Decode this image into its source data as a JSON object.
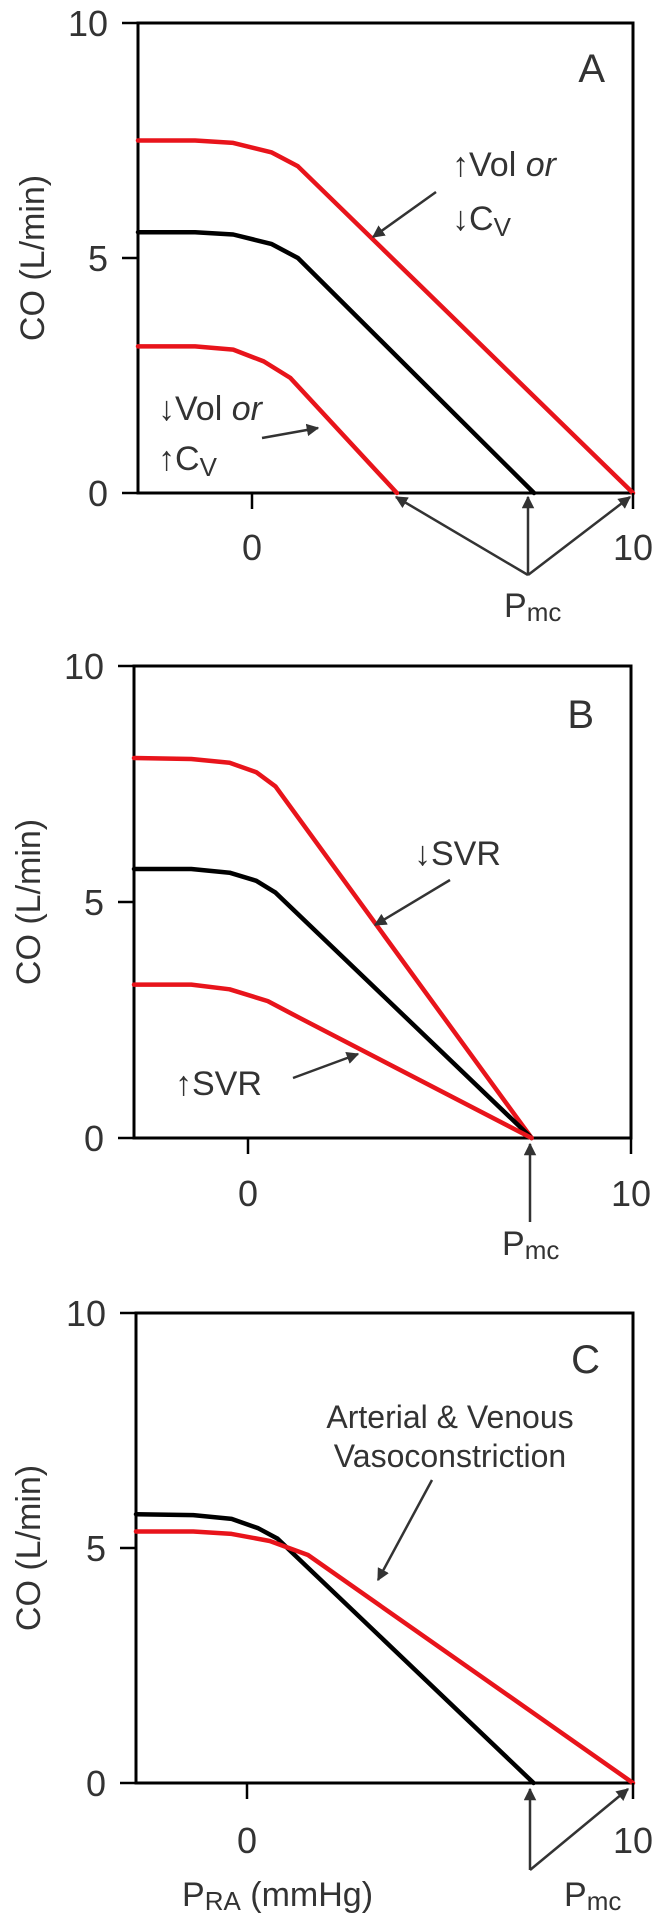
{
  "chart_data": [
    {
      "type": "line",
      "panel_label": "A",
      "ylabel": "CO  (L/min)",
      "xlabel": "",
      "xlim": [
        -3,
        10
      ],
      "ylim": [
        0,
        10
      ],
      "xticks": [
        0,
        10
      ],
      "yticks": [
        0,
        5,
        10
      ],
      "x_tick_labels": [
        "0",
        "10"
      ],
      "y_tick_labels": [
        "0",
        "5",
        "10"
      ],
      "series": [
        {
          "color": "#e8141b",
          "points": [
            [
              -3,
              7.5
            ],
            [
              -1.5,
              7.5
            ],
            [
              -0.5,
              7.45
            ],
            [
              0.5,
              7.25
            ],
            [
              1.2,
              6.95
            ],
            [
              10,
              0
            ]
          ]
        },
        {
          "color": "#000000",
          "points": [
            [
              -3,
              5.55
            ],
            [
              -1.5,
              5.55
            ],
            [
              -0.5,
              5.5
            ],
            [
              0.5,
              5.3
            ],
            [
              1.2,
              5.0
            ],
            [
              7.4,
              0
            ]
          ]
        },
        {
          "color": "#e8141b",
          "points": [
            [
              -3,
              3.12
            ],
            [
              -1.5,
              3.12
            ],
            [
              -0.5,
              3.05
            ],
            [
              0.3,
              2.8
            ],
            [
              1.0,
              2.45
            ],
            [
              3.8,
              0
            ]
          ]
        }
      ],
      "annotations": [
        {
          "parts": [
            "↑Vol ",
            "or"
          ],
          "line2": "↓C",
          "sub": "V"
        },
        {
          "parts": [
            "↓Vol ",
            "or"
          ],
          "line2": "↑C",
          "sub": "V"
        }
      ],
      "pmc_label": {
        "main": "P",
        "sub": "mc"
      }
    },
    {
      "type": "line",
      "panel_label": "B",
      "ylabel": "CO  (L/min)",
      "xlabel": "",
      "xlim": [
        -3,
        10
      ],
      "ylim": [
        0,
        10
      ],
      "xticks": [
        0,
        10
      ],
      "yticks": [
        0,
        5,
        10
      ],
      "x_tick_labels": [
        "0",
        "10"
      ],
      "y_tick_labels": [
        "0",
        "5",
        "10"
      ],
      "series": [
        {
          "color": "#e8141b",
          "points": [
            [
              -3,
              8.05
            ],
            [
              -1.5,
              8.03
            ],
            [
              -0.5,
              7.95
            ],
            [
              0.2,
              7.75
            ],
            [
              0.7,
              7.45
            ],
            [
              7.4,
              0
            ]
          ]
        },
        {
          "color": "#000000",
          "points": [
            [
              -3,
              5.7
            ],
            [
              -1.5,
              5.7
            ],
            [
              -0.5,
              5.62
            ],
            [
              0.2,
              5.45
            ],
            [
              0.7,
              5.2
            ],
            [
              7.4,
              0
            ]
          ]
        },
        {
          "color": "#e8141b",
          "points": [
            [
              -3,
              3.25
            ],
            [
              -1.5,
              3.25
            ],
            [
              -0.5,
              3.15
            ],
            [
              0.5,
              2.9
            ],
            [
              1.2,
              2.6
            ],
            [
              7.4,
              0
            ]
          ]
        }
      ],
      "annotations": [
        {
          "text": "↓SVR"
        },
        {
          "text": "↑SVR"
        }
      ],
      "pmc_label": {
        "main": "P",
        "sub": "mc"
      }
    },
    {
      "type": "line",
      "panel_label": "C",
      "ylabel": "CO  (L/min)",
      "xlabel": "PRA (mmHg)",
      "xlabel_main": "P",
      "xlabel_sub": "RA",
      "xlabel_rest": " (mmHg)",
      "xlim": [
        -3,
        10
      ],
      "ylim": [
        0,
        10
      ],
      "xticks": [
        0,
        10
      ],
      "yticks": [
        0,
        5,
        10
      ],
      "x_tick_labels": [
        "0",
        "10"
      ],
      "y_tick_labels": [
        "0",
        "5",
        "10"
      ],
      "series": [
        {
          "color": "#000000",
          "points": [
            [
              -3,
              5.72
            ],
            [
              -1.5,
              5.7
            ],
            [
              -0.5,
              5.62
            ],
            [
              0.2,
              5.42
            ],
            [
              0.7,
              5.2
            ],
            [
              7.4,
              0
            ]
          ]
        },
        {
          "color": "#e8141b",
          "points": [
            [
              -3,
              5.35
            ],
            [
              -1.5,
              5.35
            ],
            [
              -0.5,
              5.3
            ],
            [
              0.5,
              5.15
            ],
            [
              1.5,
              4.85
            ],
            [
              10,
              0
            ]
          ]
        }
      ],
      "annotations": [
        {
          "line1": "Arterial & Venous",
          "line2": "Vasoconstriction"
        }
      ],
      "pmc_label": {
        "main": "P",
        "sub": "mc"
      }
    }
  ]
}
